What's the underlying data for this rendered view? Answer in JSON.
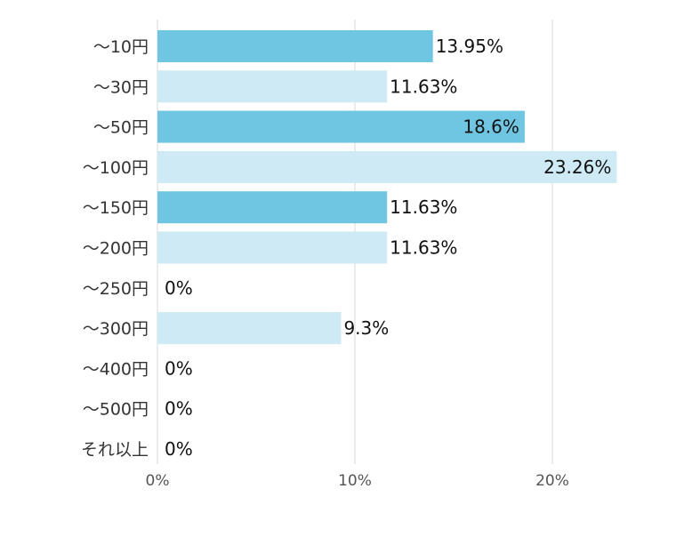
{
  "chart_data": {
    "type": "bar",
    "orientation": "horizontal",
    "categories": [
      "～10円",
      "～30円",
      "～50円",
      "～100円",
      "～150円",
      "～200円",
      "～250円",
      "～300円",
      "～400円",
      "～500円",
      "それ以上"
    ],
    "values": [
      13.95,
      11.63,
      18.6,
      23.26,
      11.63,
      11.63,
      0,
      9.3,
      0,
      0,
      0
    ],
    "value_labels": [
      "13.95%",
      "11.63%",
      "18.6%",
      "23.26%",
      "11.63%",
      "11.63%",
      "0%",
      "9.3%",
      "0%",
      "0%",
      "0%"
    ],
    "xlim": [
      0,
      25
    ],
    "x_ticks": [
      0,
      10,
      20
    ],
    "x_tick_labels": [
      "0%",
      "10%",
      "20%"
    ],
    "grid": true,
    "colors": {
      "dark": "#6ec6e2",
      "light": "#cdeaf5",
      "grid": "#d9d9d9",
      "tick_text": "#555555",
      "label_text": "#111111",
      "category_text": "#333333"
    },
    "bar_shades": [
      "dark",
      "light",
      "dark",
      "light",
      "dark",
      "light",
      "light",
      "light",
      "light",
      "light",
      "light"
    ]
  }
}
